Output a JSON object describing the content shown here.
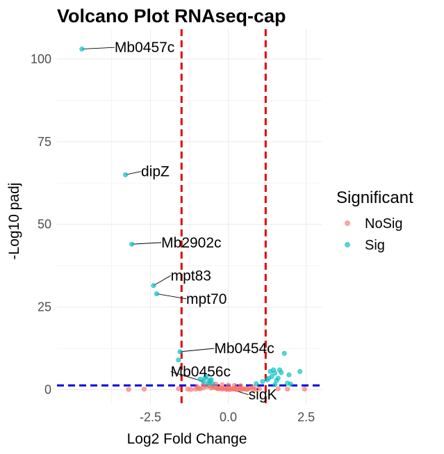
{
  "chart_data": {
    "type": "scatter",
    "title": "Volcano Plot RNAseq-cap",
    "xlabel": "Log2 Fold Change",
    "ylabel": "-Log10 padj",
    "xlim": [
      -5.5,
      3.0
    ],
    "ylim": [
      -4.5,
      109
    ],
    "x_ticks": [
      -2.5,
      0.0,
      2.5
    ],
    "x_tick_labels": [
      "-2.5",
      "0.0",
      "2.5"
    ],
    "y_ticks": [
      0,
      25,
      50,
      75,
      100
    ],
    "y_tick_labels": [
      "0",
      "25",
      "50",
      "75",
      "100"
    ],
    "grid": true,
    "vlines": [
      -1.5,
      1.2
    ],
    "hline": 1.3,
    "vline_color": "#e00000",
    "hline_color": "#0000e0",
    "legend": {
      "title": "Significant",
      "position": "right",
      "entries": [
        {
          "label": "NoSig",
          "color": "#f8766d"
        },
        {
          "label": "Sig",
          "color": "#00bfc4"
        }
      ]
    },
    "series": [
      {
        "name": "NoSig",
        "color": "#f8766d",
        "x": [
          -3.2,
          -2.7,
          -1.6,
          -1.3,
          -1.2,
          -1.05,
          -0.95,
          -0.9,
          -0.8,
          -0.7,
          -0.6,
          -0.55,
          -0.5,
          -0.45,
          -0.4,
          -0.35,
          -0.3,
          -0.25,
          -0.2,
          -0.15,
          -0.1,
          -0.05,
          0.0,
          0.05,
          0.1,
          0.15,
          0.2,
          0.25,
          0.3,
          0.35,
          0.4,
          0.45,
          0.5,
          0.55,
          0.6,
          0.65,
          0.7,
          0.8,
          0.9,
          1.0,
          -0.8,
          -0.6,
          -0.4,
          -0.2,
          0.0,
          0.2,
          0.4,
          -1.0,
          0.8,
          1.9,
          2.45,
          1.6
        ],
        "y": [
          0.1,
          0.2,
          0.3,
          0.2,
          0.1,
          0.2,
          0.4,
          0.3,
          0.6,
          0.9,
          1.1,
          0.5,
          1.0,
          0.7,
          0.6,
          0.4,
          0.3,
          0.5,
          0.2,
          0.4,
          0.3,
          0.1,
          0.2,
          0.1,
          0.3,
          0.2,
          0.4,
          0.1,
          0.2,
          0.3,
          0.1,
          0.2,
          0.3,
          0.2,
          0.1,
          0.3,
          0.5,
          0.2,
          0.1,
          0.3,
          1.5,
          1.6,
          1.7,
          1.5,
          1.4,
          1.3,
          1.2,
          0.9,
          0.8,
          0.2,
          0.2,
          0.3
        ]
      },
      {
        "name": "Sig",
        "color": "#00bfc4",
        "x": [
          -4.7,
          -3.3,
          -3.1,
          -2.4,
          -2.3,
          -1.55,
          -1.6,
          -0.8,
          -0.75,
          -0.7,
          -0.65,
          -0.6,
          -0.55,
          -0.9,
          -0.5,
          0.9,
          1.1,
          1.3,
          1.35,
          1.4,
          1.45,
          1.5,
          1.55,
          1.6,
          1.65,
          1.7,
          1.8,
          1.95,
          1.25,
          2.3,
          1.9,
          1.5,
          2.0
        ],
        "y": [
          103,
          65,
          44,
          31.5,
          29,
          11.5,
          9,
          2.5,
          3.5,
          4,
          2,
          2.8,
          3,
          3.2,
          1.8,
          1.8,
          2.5,
          3.5,
          5.5,
          4,
          6,
          5,
          2.8,
          3.5,
          6,
          5.2,
          11,
          4.5,
          3,
          5.5,
          2,
          1.6,
          1.7
        ]
      }
    ],
    "annotations": [
      {
        "text": "Mb0457c",
        "x": -4.7,
        "y": 103,
        "label_x": -3.65,
        "label_y": 103.5
      },
      {
        "text": "dipZ",
        "x": -3.3,
        "y": 65,
        "label_x": -2.8,
        "label_y": 66
      },
      {
        "text": "Mb2902c",
        "x": -3.1,
        "y": 44,
        "label_x": -2.15,
        "label_y": 44.5
      },
      {
        "text": "mpt83",
        "x": -2.4,
        "y": 31.5,
        "label_x": -1.85,
        "label_y": 34.5
      },
      {
        "text": "mpt70",
        "x": -2.3,
        "y": 29,
        "label_x": -1.35,
        "label_y": 27.5
      },
      {
        "text": "Mb0454c",
        "x": -1.55,
        "y": 11.5,
        "label_x": -0.45,
        "label_y": 12.5
      },
      {
        "text": "Mb0456c",
        "x": -0.8,
        "y": 2.5,
        "label_x": -1.85,
        "label_y": 5.5
      },
      {
        "text": "sigK",
        "x": 0.0,
        "y": 0.4,
        "label_x": 0.65,
        "label_y": -1.5
      }
    ]
  }
}
